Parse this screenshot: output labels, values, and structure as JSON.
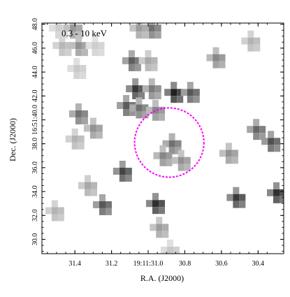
{
  "chart_data": {
    "type": "heatmap",
    "title": "0.3 - 10 keV",
    "xlabel": "R.A. (J2000)",
    "ylabel": "Dec. (J2000)",
    "x_ticks": [
      "31.4",
      "31.2",
      "19:11:31.0",
      "30.8",
      "30.6",
      "30.4"
    ],
    "x_tick_values": [
      31.4,
      31.2,
      31.0,
      30.8,
      30.6,
      30.4
    ],
    "xlim": [
      31.58,
      30.26
    ],
    "y_ticks": [
      "30.0",
      "32.0",
      "34.0",
      "36.0",
      "38.0",
      "16:51:40.0",
      "42.0",
      "44.0",
      "46.0",
      "48.0"
    ],
    "y_tick_values": [
      30.0,
      32.0,
      34.0,
      36.0,
      38.0,
      40.0,
      42.0,
      44.0,
      46.0,
      48.0
    ],
    "ylim": [
      28.8,
      48.1
    ],
    "circle": {
      "ra": 30.885,
      "dec": 38.1,
      "radius_arcsec": 2.9,
      "color": "#ff00ff",
      "style": "dashed"
    },
    "colormap": "gray_r",
    "pixels": [
      {
        "ra": 31.49,
        "dec": 47.68,
        "level": 0.18
      },
      {
        "ra": 31.41,
        "dec": 47.68,
        "level": 0.42
      },
      {
        "ra": 31.05,
        "dec": 47.68,
        "level": 0.4
      },
      {
        "ra": 30.98,
        "dec": 47.68,
        "level": 0.6
      },
      {
        "ra": 31.47,
        "dec": 46.22,
        "level": 0.28
      },
      {
        "ra": 31.38,
        "dec": 46.22,
        "level": 0.45
      },
      {
        "ra": 31.29,
        "dec": 46.22,
        "level": 0.18
      },
      {
        "ra": 31.09,
        "dec": 44.95,
        "level": 0.68
      },
      {
        "ra": 31.0,
        "dec": 44.95,
        "level": 0.35
      },
      {
        "ra": 30.44,
        "dec": 46.6,
        "level": 0.3
      },
      {
        "ra": 30.63,
        "dec": 45.2,
        "level": 0.5
      },
      {
        "ra": 31.39,
        "dec": 44.3,
        "level": 0.2
      },
      {
        "ra": 31.07,
        "dec": 42.6,
        "level": 0.85
      },
      {
        "ra": 30.98,
        "dec": 42.6,
        "level": 0.55
      },
      {
        "ra": 30.86,
        "dec": 42.3,
        "level": 0.97
      },
      {
        "ra": 30.77,
        "dec": 42.3,
        "level": 0.72
      },
      {
        "ra": 31.12,
        "dec": 41.2,
        "level": 0.7
      },
      {
        "ra": 31.05,
        "dec": 41.0,
        "level": 0.6
      },
      {
        "ra": 30.96,
        "dec": 40.8,
        "level": 0.5
      },
      {
        "ra": 31.38,
        "dec": 40.5,
        "level": 0.6
      },
      {
        "ra": 31.3,
        "dec": 39.3,
        "level": 0.45
      },
      {
        "ra": 31.4,
        "dec": 38.4,
        "level": 0.3
      },
      {
        "ra": 30.87,
        "dec": 38.0,
        "level": 0.6
      },
      {
        "ra": 30.92,
        "dec": 37.0,
        "level": 0.5
      },
      {
        "ra": 30.82,
        "dec": 36.6,
        "level": 0.45
      },
      {
        "ra": 30.56,
        "dec": 37.2,
        "level": 0.45
      },
      {
        "ra": 30.41,
        "dec": 39.2,
        "level": 0.65
      },
      {
        "ra": 30.33,
        "dec": 38.2,
        "level": 0.75
      },
      {
        "ra": 31.14,
        "dec": 35.7,
        "level": 0.8
      },
      {
        "ra": 31.33,
        "dec": 34.5,
        "level": 0.35
      },
      {
        "ra": 31.25,
        "dec": 32.9,
        "level": 0.72
      },
      {
        "ra": 30.96,
        "dec": 33.0,
        "level": 0.9
      },
      {
        "ra": 30.94,
        "dec": 31.0,
        "level": 0.4
      },
      {
        "ra": 30.52,
        "dec": 33.5,
        "level": 0.85
      },
      {
        "ra": 30.3,
        "dec": 33.9,
        "level": 0.9
      },
      {
        "ra": 31.51,
        "dec": 32.4,
        "level": 0.3
      },
      {
        "ra": 30.88,
        "dec": 29.1,
        "level": 0.2
      }
    ]
  }
}
